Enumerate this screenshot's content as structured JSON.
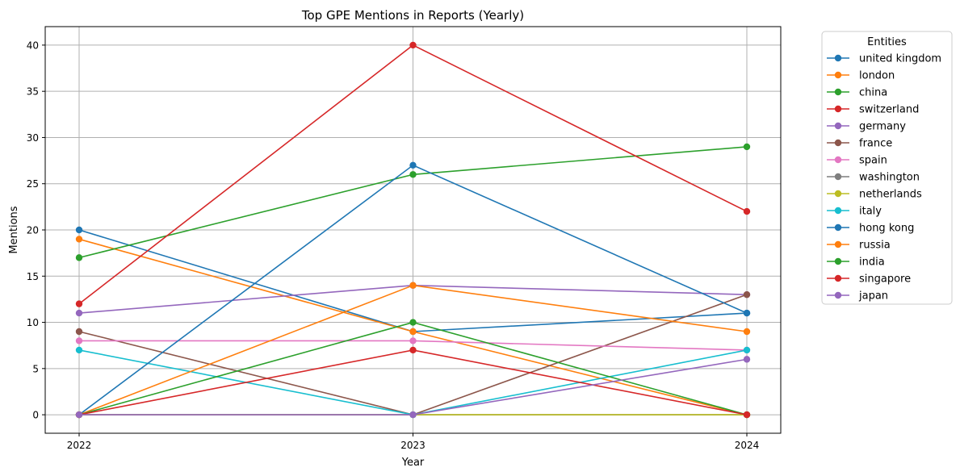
{
  "chart_data": {
    "type": "line",
    "title": "Top GPE Mentions in Reports (Yearly)",
    "xlabel": "Year",
    "ylabel": "Mentions",
    "x": [
      "2022",
      "2023",
      "2024"
    ],
    "ylim": [
      -2,
      42
    ],
    "yticks": [
      0,
      5,
      10,
      15,
      20,
      25,
      30,
      35,
      40
    ],
    "grid": true,
    "legend": {
      "title": "Entities",
      "placement": "outside-right"
    },
    "series": [
      {
        "name": "united kingdom",
        "color": "#1f77b4",
        "values": [
          20,
          9,
          11
        ]
      },
      {
        "name": "london",
        "color": "#ff7f0e",
        "values": [
          19,
          9,
          0
        ]
      },
      {
        "name": "china",
        "color": "#2ca02c",
        "values": [
          17,
          26,
          29
        ]
      },
      {
        "name": "switzerland",
        "color": "#d62728",
        "values": [
          12,
          40,
          22
        ]
      },
      {
        "name": "germany",
        "color": "#9467bd",
        "values": [
          11,
          14,
          13
        ]
      },
      {
        "name": "france",
        "color": "#8c564b",
        "values": [
          9,
          0,
          13
        ]
      },
      {
        "name": "spain",
        "color": "#e377c2",
        "values": [
          8,
          8,
          7
        ]
      },
      {
        "name": "washington",
        "color": "#7f7f7f",
        "values": [
          0,
          0,
          0
        ]
      },
      {
        "name": "netherlands",
        "color": "#bcbd22",
        "values": [
          0,
          0,
          0
        ]
      },
      {
        "name": "italy",
        "color": "#17becf",
        "values": [
          7,
          0,
          7
        ]
      },
      {
        "name": "hong kong",
        "color": "#1f77b4",
        "values": [
          0,
          27,
          11
        ]
      },
      {
        "name": "russia",
        "color": "#ff7f0e",
        "values": [
          0,
          14,
          9
        ]
      },
      {
        "name": "india",
        "color": "#2ca02c",
        "values": [
          0,
          10,
          0
        ]
      },
      {
        "name": "singapore",
        "color": "#d62728",
        "values": [
          0,
          7,
          0
        ]
      },
      {
        "name": "japan",
        "color": "#9467bd",
        "values": [
          0,
          0,
          6
        ]
      }
    ]
  }
}
